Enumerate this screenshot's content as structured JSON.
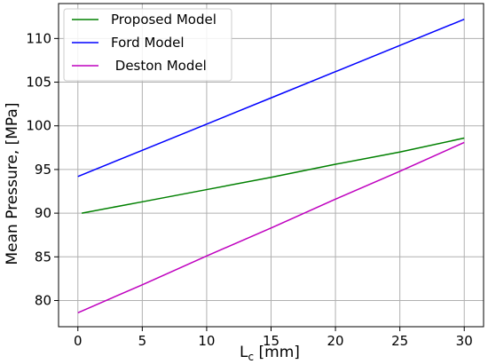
{
  "chart_data": {
    "type": "line",
    "title": "",
    "xlabel_main": "L",
    "xlabel_sub": "c",
    "xlabel_unit": " [mm]",
    "ylabel": "Mean Pressure, [MPa]",
    "xlim": [
      -1.5,
      31.5
    ],
    "ylim": [
      77,
      114
    ],
    "xticks": [
      0,
      5,
      10,
      15,
      20,
      25,
      30
    ],
    "yticks": [
      80,
      85,
      90,
      95,
      100,
      105,
      110
    ],
    "grid": true,
    "legend_position": "top-left",
    "series": [
      {
        "name": "Proposed Model",
        "color": "#008000",
        "x": [
          0.3,
          5,
          10,
          15,
          20,
          25,
          30
        ],
        "y": [
          90.0,
          91.3,
          92.7,
          94.1,
          95.6,
          97.0,
          98.6
        ]
      },
      {
        "name": "Ford Model",
        "color": "#0000ff",
        "x": [
          0,
          5,
          10,
          15,
          20,
          25,
          30
        ],
        "y": [
          94.2,
          97.2,
          100.2,
          103.2,
          106.2,
          109.2,
          112.2
        ]
      },
      {
        "name": " Deston Model",
        "color": "#bf00bf",
        "x": [
          0,
          5,
          10,
          15,
          20,
          25,
          30
        ],
        "y": [
          78.6,
          81.8,
          85.1,
          88.3,
          91.6,
          94.8,
          98.1
        ]
      }
    ]
  }
}
